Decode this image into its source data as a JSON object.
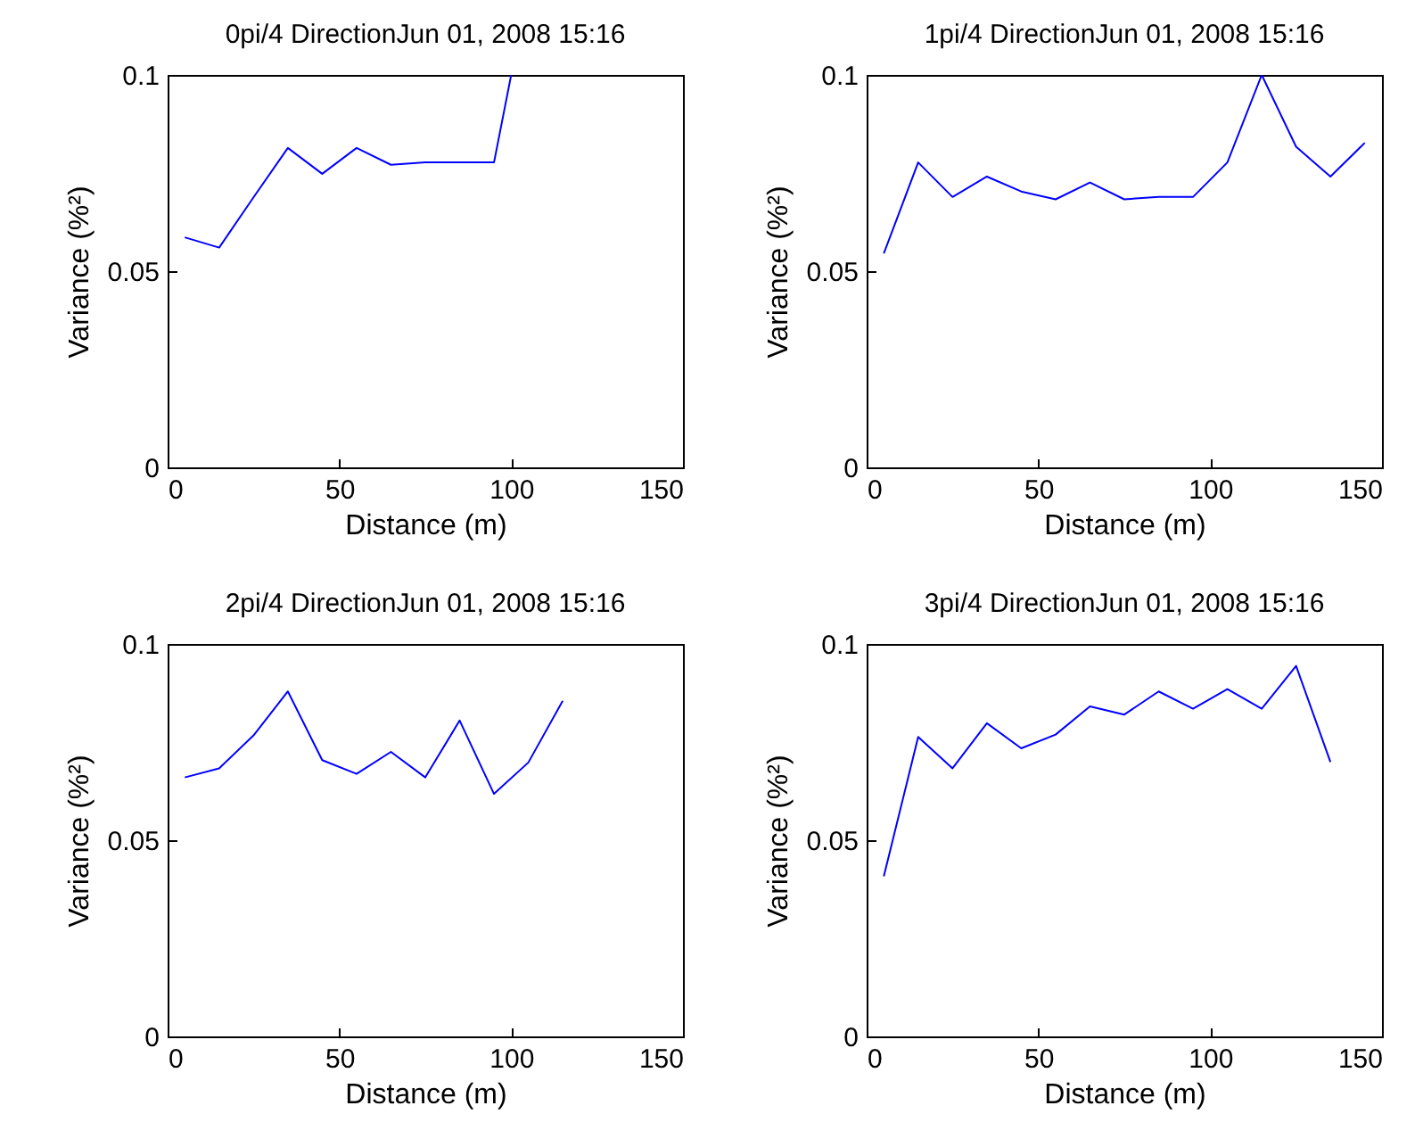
{
  "chart_data": [
    {
      "type": "line",
      "title": "0pi/4 DirectionJun 01, 2008  15:16",
      "xlabel": "Distance (m)",
      "ylabel": "Variance (%²)",
      "xlim": [
        0,
        150
      ],
      "xticks": [
        0,
        50,
        100,
        150
      ],
      "ylim": [
        0,
        0.1
      ],
      "yticks": [
        0,
        0.05,
        0.1
      ],
      "series": [
        {
          "color": "#0000ff",
          "x": [
            5,
            15,
            25,
            35,
            45,
            55,
            65,
            75,
            85,
            95,
            100
          ],
          "values": [
            0.0586,
            0.056,
            0.0688,
            0.0814,
            0.0748,
            0.0814,
            0.0771,
            0.0777,
            0.0777,
            0.0777,
            0.1
          ]
        }
      ]
    },
    {
      "type": "line",
      "title": "1pi/4 DirectionJun 01, 2008  15:16",
      "xlabel": "Distance (m)",
      "ylabel": "Variance (%²)",
      "xlim": [
        0,
        150
      ],
      "xticks": [
        0,
        50,
        100,
        150
      ],
      "ylim": [
        0,
        0.1
      ],
      "yticks": [
        0,
        0.05,
        0.1
      ],
      "series": [
        {
          "color": "#0000ff",
          "x": [
            5,
            15,
            25,
            35,
            45,
            55,
            65,
            75,
            85,
            95,
            105,
            115,
            125,
            135,
            145
          ],
          "values": [
            0.0545,
            0.0777,
            0.0689,
            0.0741,
            0.0703,
            0.0683,
            0.0726,
            0.0683,
            0.0689,
            0.0689,
            0.0777,
            0.1,
            0.0817,
            0.0741,
            0.0827
          ]
        }
      ]
    },
    {
      "type": "line",
      "title": "2pi/4 DirectionJun 01, 2008  15:16",
      "xlabel": "Distance (m)",
      "ylabel": "Variance (%²)",
      "xlim": [
        0,
        150
      ],
      "xticks": [
        0,
        50,
        100,
        150
      ],
      "ylim": [
        0,
        0.1
      ],
      "yticks": [
        0,
        0.05,
        0.1
      ],
      "series": [
        {
          "color": "#0000ff",
          "x": [
            5,
            15,
            25,
            35,
            45,
            55,
            65,
            75,
            85,
            95,
            105,
            115
          ],
          "values": [
            0.066,
            0.0683,
            0.0767,
            0.0879,
            0.0704,
            0.0669,
            0.0725,
            0.066,
            0.0805,
            0.0618,
            0.0698,
            0.0855
          ]
        }
      ]
    },
    {
      "type": "line",
      "title": "3pi/4 DirectionJun 01, 2008  15:16",
      "xlabel": "Distance (m)",
      "ylabel": "Variance (%²)",
      "xlim": [
        0,
        150
      ],
      "xticks": [
        0,
        50,
        100,
        150
      ],
      "ylim": [
        0,
        0.1
      ],
      "yticks": [
        0,
        0.05,
        0.1
      ],
      "series": [
        {
          "color": "#0000ff",
          "x": [
            5,
            15,
            25,
            35,
            45,
            55,
            65,
            75,
            85,
            95,
            105,
            115,
            125,
            135
          ],
          "values": [
            0.0408,
            0.0763,
            0.0683,
            0.0798,
            0.0734,
            0.0769,
            0.0841,
            0.082,
            0.0879,
            0.0835,
            0.0885,
            0.0835,
            0.0944,
            0.0699
          ]
        }
      ]
    }
  ]
}
